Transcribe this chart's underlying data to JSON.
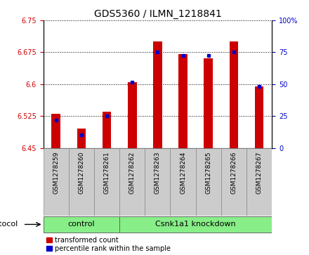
{
  "title": "GDS5360 / ILMN_1218841",
  "samples": [
    "GSM1278259",
    "GSM1278260",
    "GSM1278261",
    "GSM1278262",
    "GSM1278263",
    "GSM1278264",
    "GSM1278265",
    "GSM1278266",
    "GSM1278267"
  ],
  "red_values": [
    6.53,
    6.495,
    6.535,
    6.605,
    6.7,
    6.67,
    6.66,
    6.7,
    6.595
  ],
  "blue_values": [
    6.515,
    6.48,
    6.525,
    6.605,
    6.675,
    6.668,
    6.668,
    6.675,
    6.595
  ],
  "ylim_left": [
    6.45,
    6.75
  ],
  "ylim_right": [
    0,
    100
  ],
  "yticks_left": [
    6.45,
    6.525,
    6.6,
    6.675,
    6.75
  ],
  "yticks_right": [
    0,
    25,
    50,
    75,
    100
  ],
  "bar_color": "#cc0000",
  "blue_color": "#0000cc",
  "bar_bottom": 6.45,
  "control_label": "control",
  "knockdown_label": "Csnk1a1 knockdown",
  "protocol_label": "protocol",
  "control_count": 3,
  "knockdown_count": 6,
  "legend_red": "transformed count",
  "legend_blue": "percentile rank within the sample",
  "group_bg_color": "#88ee88",
  "tick_bg_color": "#cccccc",
  "title_fontsize": 10,
  "tick_fontsize": 7,
  "bar_width": 0.35
}
